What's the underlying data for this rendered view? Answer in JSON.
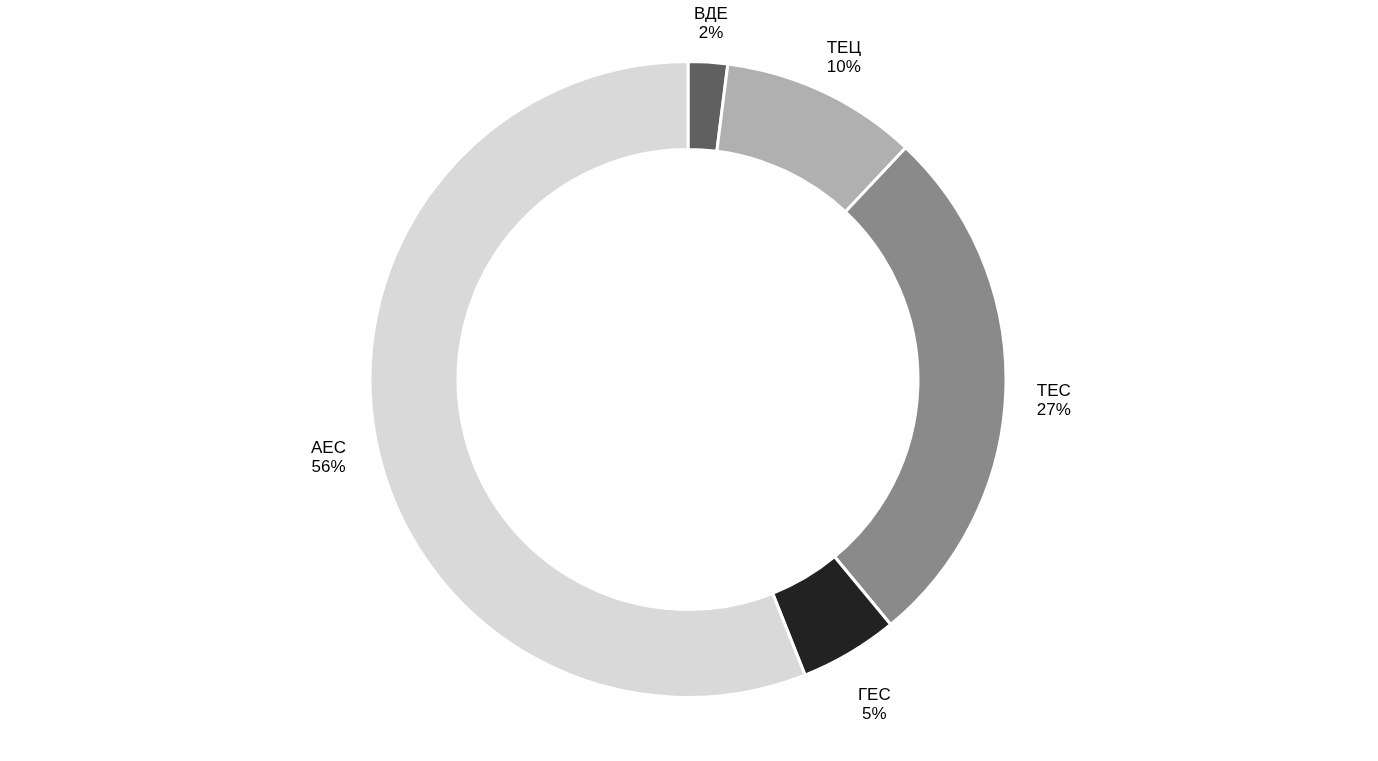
{
  "chart_data": {
    "type": "donut",
    "categories": [
      "ВДЕ",
      "ТЕЦ",
      "ТЕС",
      "ГЕС",
      "АЕС"
    ],
    "values": [
      2,
      10,
      27,
      5,
      56
    ],
    "value_labels": [
      "2%",
      "10%",
      "27%",
      "5%",
      "56%"
    ],
    "colors": [
      "#606060",
      "#b0b0b0",
      "#8a8a8a",
      "#222222",
      "#d9d9d9"
    ]
  }
}
